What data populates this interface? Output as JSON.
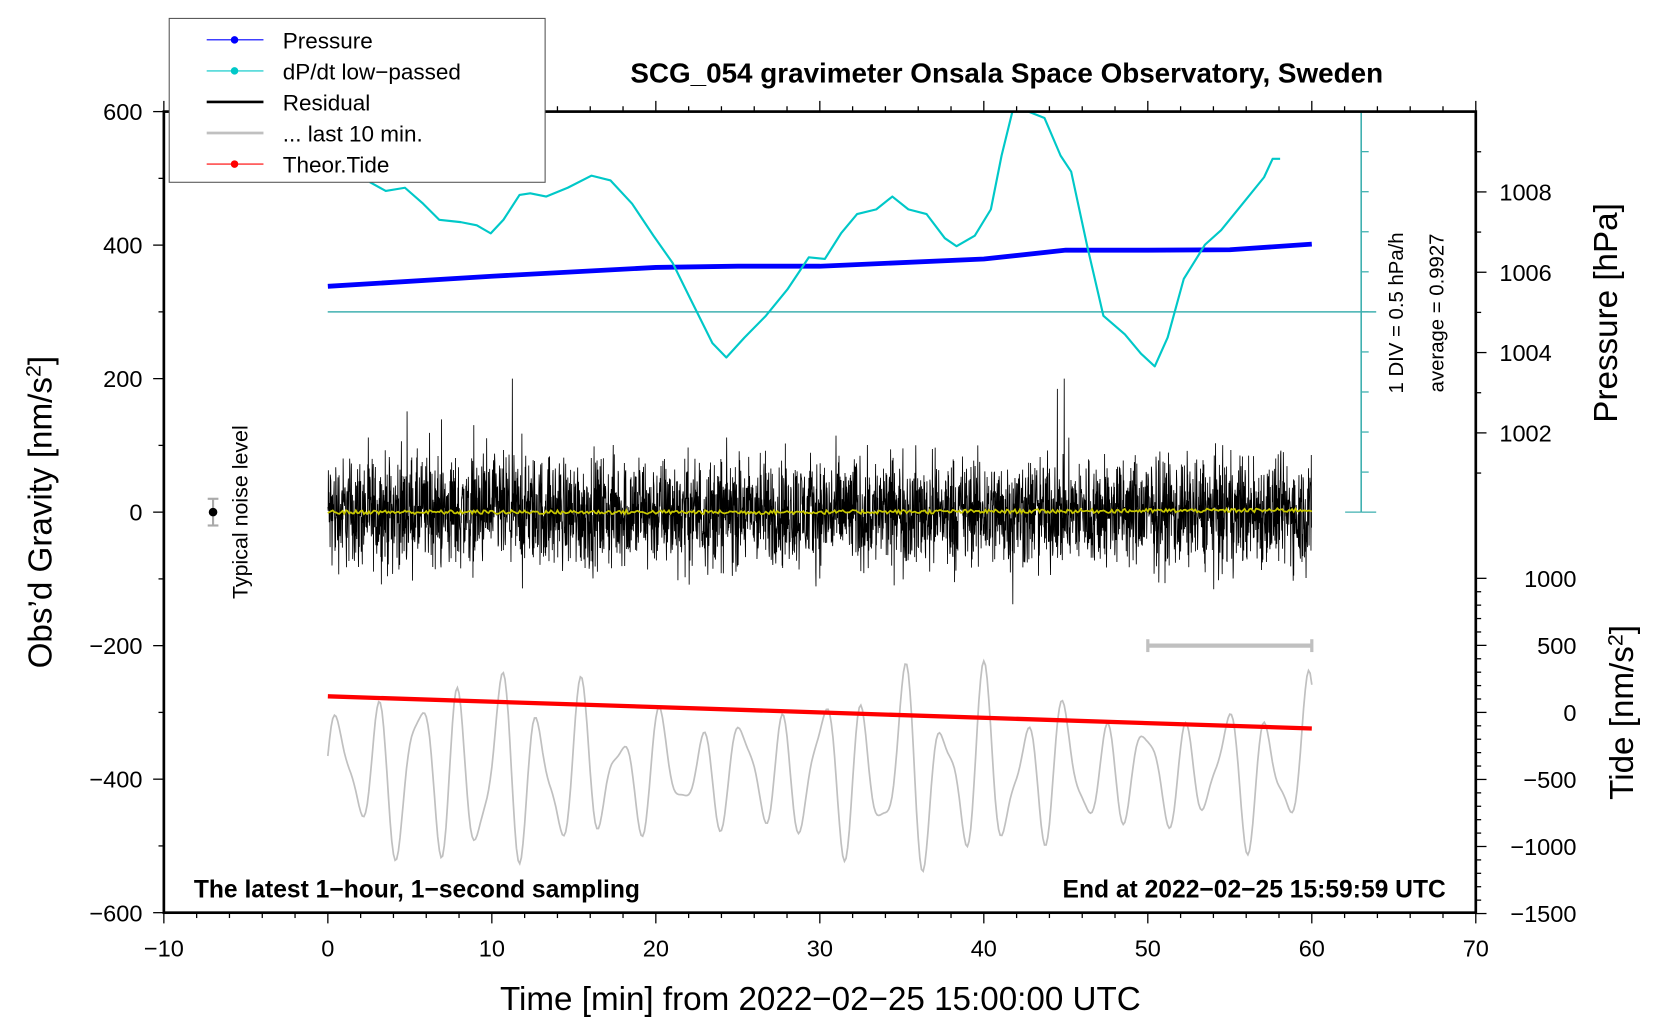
{
  "chart_data": {
    "type": "line",
    "title": "SCG_054 gravimeter Onsala Space Observatory, Sweden",
    "xlabel": "Time [min] from 2022−02−25 15:00:00 UTC",
    "ylabel": "Obs’d Gravity [nm/s",
    "ylabel_sup": "2",
    "ylabel_end": "]",
    "y2label": "Pressure [hPa]",
    "y3label": "Tide [nm/s",
    "y3label_sup": "2",
    "y3label_end": "]",
    "xlim": [
      -10,
      70
    ],
    "ylim": [
      -600,
      600
    ],
    "pressure_lim_labels": [
      1002,
      1004,
      1006,
      1008
    ],
    "tide_lim": [
      -1500,
      1000
    ],
    "x_ticks": [
      "−10",
      "0",
      "10",
      "20",
      "30",
      "40",
      "50",
      "60",
      "70"
    ],
    "y_ticks": [
      "600",
      "400",
      "200",
      "0",
      "−200",
      "−400",
      "−600"
    ],
    "pressure_ticks": [
      "1008",
      "1006",
      "1004",
      "1002"
    ],
    "tide_ticks": [
      "1000",
      "500",
      "0",
      "−500",
      "−1000",
      "−1500"
    ],
    "legend": {
      "placement": "top-left",
      "entries": [
        {
          "label": "Pressure",
          "color": "#0000ff"
        },
        {
          "label": "dP/dt low−passed",
          "color": "#00c8c8"
        },
        {
          "label": "Residual",
          "color": "#000000"
        },
        {
          "label": "... last 10 min.",
          "color": "#c0c0c0"
        },
        {
          "label": "Theor.Tide",
          "color": "#ff0000"
        }
      ]
    },
    "annotations": {
      "bottom_left": "The latest 1−hour, 1−second sampling",
      "bottom_right": "End at 2022−02−25 15:59:59 UTC",
      "noise_label": "Typical noise level",
      "div_label": "1 DIV = 0.5 hPa/h",
      "average_label": "average = 0.9927"
    },
    "series": [
      {
        "name": "Pressure",
        "unit": "hPa",
        "color": "#0000ff",
        "x": [
          0,
          10,
          20,
          25,
          30,
          40,
          45,
          50,
          55,
          60
        ],
        "y": [
          1005.65,
          1005.9,
          1006.12,
          1006.15,
          1006.15,
          1006.33,
          1006.55,
          1006.55,
          1006.56,
          1006.7
        ]
      },
      {
        "name": "dP/dt low-passed",
        "unit": "hPa/h",
        "color": "#00c8c8",
        "zero_at_pressure_axis": true,
        "x": [
          2.55,
          3.53,
          4.7,
          5.81,
          6.79,
          8.1,
          9.08,
          9.93,
          10.71,
          11.69,
          12.34,
          13.32,
          14.63,
          16.07,
          17.24,
          18.55,
          19.86,
          21.03,
          22.14,
          23.45,
          24.3,
          25.41,
          26.71,
          28.02,
          29.33,
          30.31,
          31.29,
          32.27,
          33.44,
          34.42,
          35.4,
          36.51,
          37.62,
          38.34,
          39.45,
          40.43,
          41.08,
          41.74,
          42.72,
          43.7,
          44.68,
          45.33,
          46.31,
          47.29,
          48.6,
          49.58,
          50.42,
          51.21,
          52.19,
          53.49,
          54.47,
          55.78,
          57.09,
          57.61,
          58.07
        ],
        "y": [
          1.62,
          1.51,
          1.55,
          1.35,
          1.15,
          1.12,
          1.08,
          0.98,
          1.15,
          1.46,
          1.48,
          1.44,
          1.55,
          1.7,
          1.64,
          1.35,
          0.95,
          0.61,
          0.15,
          -0.39,
          -0.57,
          -0.32,
          -0.05,
          0.28,
          0.68,
          0.66,
          0.98,
          1.22,
          1.28,
          1.44,
          1.28,
          1.22,
          0.92,
          0.82,
          0.95,
          1.28,
          1.95,
          2.62,
          2.95,
          2.42,
          1.95,
          1.75,
          0.82,
          -0.05,
          -0.28,
          -0.52,
          -0.68,
          -0.32,
          0.41,
          0.84,
          1.02,
          1.35,
          1.68,
          1.91,
          1.91
        ]
      },
      {
        "name": "Residual",
        "unit": "nm/s2",
        "color": "#000000",
        "sampling_s": 1,
        "approx_std": 45,
        "max": 200,
        "min": -195
      },
      {
        "name": "Residual smoothed",
        "unit": "nm/s2",
        "color": "#c8c800",
        "x": [
          0,
          30,
          60
        ],
        "y": [
          0,
          0,
          3
        ]
      },
      {
        "name": "... last 10 min.",
        "unit": "nm/s2",
        "color": "#c0c0c0",
        "time_window_min": [
          50,
          60
        ],
        "display_offset": -390
      },
      {
        "name": "Theor.Tide",
        "unit": "nm/s2",
        "color": "#ff0000",
        "x": [
          0,
          60
        ],
        "y": [
          120,
          -120
        ]
      }
    ],
    "noise_level": {
      "x": -7,
      "y": 0,
      "error": 20
    },
    "last10_bar": {
      "x": [
        50,
        60
      ],
      "y": -200
    },
    "div_scale_hPa_per_h": 0.5,
    "grid": false
  }
}
